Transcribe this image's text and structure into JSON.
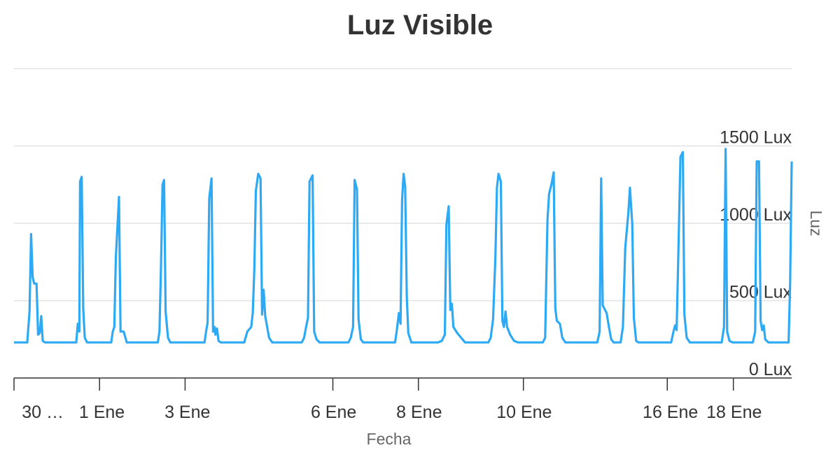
{
  "chart_data": {
    "type": "line",
    "title": "Luz Visible",
    "xlabel": "Fecha",
    "ylabel": "Luz",
    "yticks": [
      "0 Lux",
      "500 Lux",
      "1000 Lux",
      "1500 Lux"
    ],
    "ytick_values": [
      0,
      500,
      1000,
      1500
    ],
    "ylim": [
      0,
      2000
    ],
    "xticks": [
      "30 …",
      "1 Ene",
      "3 Ene",
      "6 Ene",
      "8 Ene",
      "10 Ene",
      "16 Ene",
      "18 Ene"
    ],
    "xtick_positions": [
      0,
      11,
      22,
      41,
      52,
      65.5,
      84,
      92.5
    ],
    "xlim": [
      0,
      100
    ],
    "grid": true,
    "color": "#2eaaf5",
    "series": [
      {
        "values": [
          [
            0,
            230
          ],
          [
            1.7,
            230
          ],
          [
            2.0,
            430
          ],
          [
            2.2,
            930
          ],
          [
            2.4,
            650
          ],
          [
            2.6,
            610
          ],
          [
            2.9,
            610
          ],
          [
            3.1,
            280
          ],
          [
            3.3,
            290
          ],
          [
            3.5,
            400
          ],
          [
            3.7,
            240
          ],
          [
            4.0,
            230
          ],
          [
            8.0,
            230
          ],
          [
            8.2,
            350
          ],
          [
            8.4,
            300
          ],
          [
            8.5,
            1270
          ],
          [
            8.7,
            1300
          ],
          [
            8.9,
            450
          ],
          [
            9.1,
            260
          ],
          [
            9.4,
            230
          ],
          [
            12.5,
            230
          ],
          [
            12.7,
            300
          ],
          [
            12.9,
            330
          ],
          [
            13.1,
            780
          ],
          [
            13.5,
            1170
          ],
          [
            13.7,
            300
          ],
          [
            14.1,
            300
          ],
          [
            14.5,
            230
          ],
          [
            18.5,
            230
          ],
          [
            18.7,
            300
          ],
          [
            18.9,
            720
          ],
          [
            19.1,
            1250
          ],
          [
            19.3,
            1280
          ],
          [
            19.5,
            430
          ],
          [
            19.8,
            260
          ],
          [
            20.1,
            230
          ],
          [
            24.5,
            230
          ],
          [
            24.7,
            300
          ],
          [
            24.9,
            360
          ],
          [
            25.1,
            1160
          ],
          [
            25.4,
            1290
          ],
          [
            25.6,
            300
          ],
          [
            25.8,
            330
          ],
          [
            25.9,
            280
          ],
          [
            26.1,
            320
          ],
          [
            26.3,
            240
          ],
          [
            26.6,
            230
          ],
          [
            29.6,
            230
          ],
          [
            30.0,
            300
          ],
          [
            30.5,
            330
          ],
          [
            30.7,
            420
          ],
          [
            30.9,
            700
          ],
          [
            31.1,
            1210
          ],
          [
            31.4,
            1320
          ],
          [
            31.7,
            1290
          ],
          [
            31.9,
            410
          ],
          [
            32.1,
            570
          ],
          [
            32.3,
            400
          ],
          [
            32.8,
            260
          ],
          [
            33.2,
            230
          ],
          [
            37.0,
            230
          ],
          [
            37.3,
            260
          ],
          [
            37.6,
            340
          ],
          [
            37.8,
            390
          ],
          [
            38.0,
            1270
          ],
          [
            38.4,
            1310
          ],
          [
            38.6,
            300
          ],
          [
            38.9,
            250
          ],
          [
            39.3,
            230
          ],
          [
            43.0,
            230
          ],
          [
            43.3,
            260
          ],
          [
            43.6,
            330
          ],
          [
            43.8,
            1280
          ],
          [
            44.1,
            1220
          ],
          [
            44.3,
            380
          ],
          [
            44.6,
            250
          ],
          [
            44.9,
            230
          ],
          [
            49.0,
            230
          ],
          [
            49.2,
            300
          ],
          [
            49.5,
            420
          ],
          [
            49.7,
            350
          ],
          [
            49.9,
            1150
          ],
          [
            50.1,
            1320
          ],
          [
            50.3,
            1240
          ],
          [
            50.5,
            530
          ],
          [
            50.7,
            290
          ],
          [
            51.1,
            230
          ],
          [
            54.5,
            230
          ],
          [
            55.0,
            240
          ],
          [
            55.4,
            280
          ],
          [
            55.6,
            990
          ],
          [
            55.9,
            1110
          ],
          [
            56.1,
            440
          ],
          [
            56.3,
            480
          ],
          [
            56.5,
            330
          ],
          [
            57.0,
            290
          ],
          [
            57.5,
            260
          ],
          [
            58.0,
            230
          ],
          [
            61.0,
            230
          ],
          [
            61.3,
            260
          ],
          [
            61.6,
            380
          ],
          [
            61.9,
            780
          ],
          [
            62.1,
            1230
          ],
          [
            62.3,
            1320
          ],
          [
            62.6,
            1270
          ],
          [
            62.8,
            370
          ],
          [
            63.0,
            330
          ],
          [
            63.2,
            430
          ],
          [
            63.4,
            330
          ],
          [
            63.8,
            280
          ],
          [
            64.3,
            240
          ],
          [
            64.8,
            230
          ],
          [
            68.0,
            230
          ],
          [
            68.3,
            260
          ],
          [
            68.6,
            1020
          ],
          [
            68.8,
            1190
          ],
          [
            69.1,
            1250
          ],
          [
            69.4,
            1330
          ],
          [
            69.6,
            450
          ],
          [
            69.8,
            370
          ],
          [
            70.2,
            350
          ],
          [
            70.5,
            260
          ],
          [
            70.9,
            230
          ],
          [
            75.0,
            230
          ],
          [
            75.3,
            300
          ],
          [
            75.5,
            1290
          ],
          [
            75.7,
            470
          ],
          [
            75.9,
            450
          ],
          [
            76.2,
            420
          ],
          [
            76.5,
            330
          ],
          [
            76.8,
            250
          ],
          [
            77.1,
            230
          ],
          [
            78.0,
            230
          ],
          [
            78.3,
            330
          ],
          [
            78.6,
            840
          ],
          [
            79.0,
            1070
          ],
          [
            79.2,
            1230
          ],
          [
            79.5,
            1000
          ],
          [
            79.7,
            390
          ],
          [
            80.0,
            240
          ],
          [
            80.3,
            230
          ],
          [
            84.5,
            230
          ],
          [
            84.8,
            300
          ],
          [
            85.0,
            340
          ],
          [
            85.2,
            310
          ],
          [
            85.4,
            750
          ],
          [
            85.7,
            1430
          ],
          [
            86.0,
            1460
          ],
          [
            86.2,
            410
          ],
          [
            86.5,
            260
          ],
          [
            86.9,
            230
          ],
          [
            91.0,
            230
          ],
          [
            91.3,
            330
          ],
          [
            91.5,
            1480
          ],
          [
            91.7,
            300
          ],
          [
            92.0,
            240
          ],
          [
            92.4,
            230
          ],
          [
            95.0,
            230
          ],
          [
            95.3,
            300
          ],
          [
            95.5,
            1400
          ],
          [
            95.8,
            1400
          ],
          [
            96.0,
            370
          ],
          [
            96.2,
            310
          ],
          [
            96.4,
            340
          ],
          [
            96.6,
            250
          ],
          [
            97.0,
            230
          ],
          [
            99.6,
            230
          ],
          [
            99.8,
            620
          ],
          [
            100.0,
            1400
          ]
        ]
      }
    ]
  }
}
